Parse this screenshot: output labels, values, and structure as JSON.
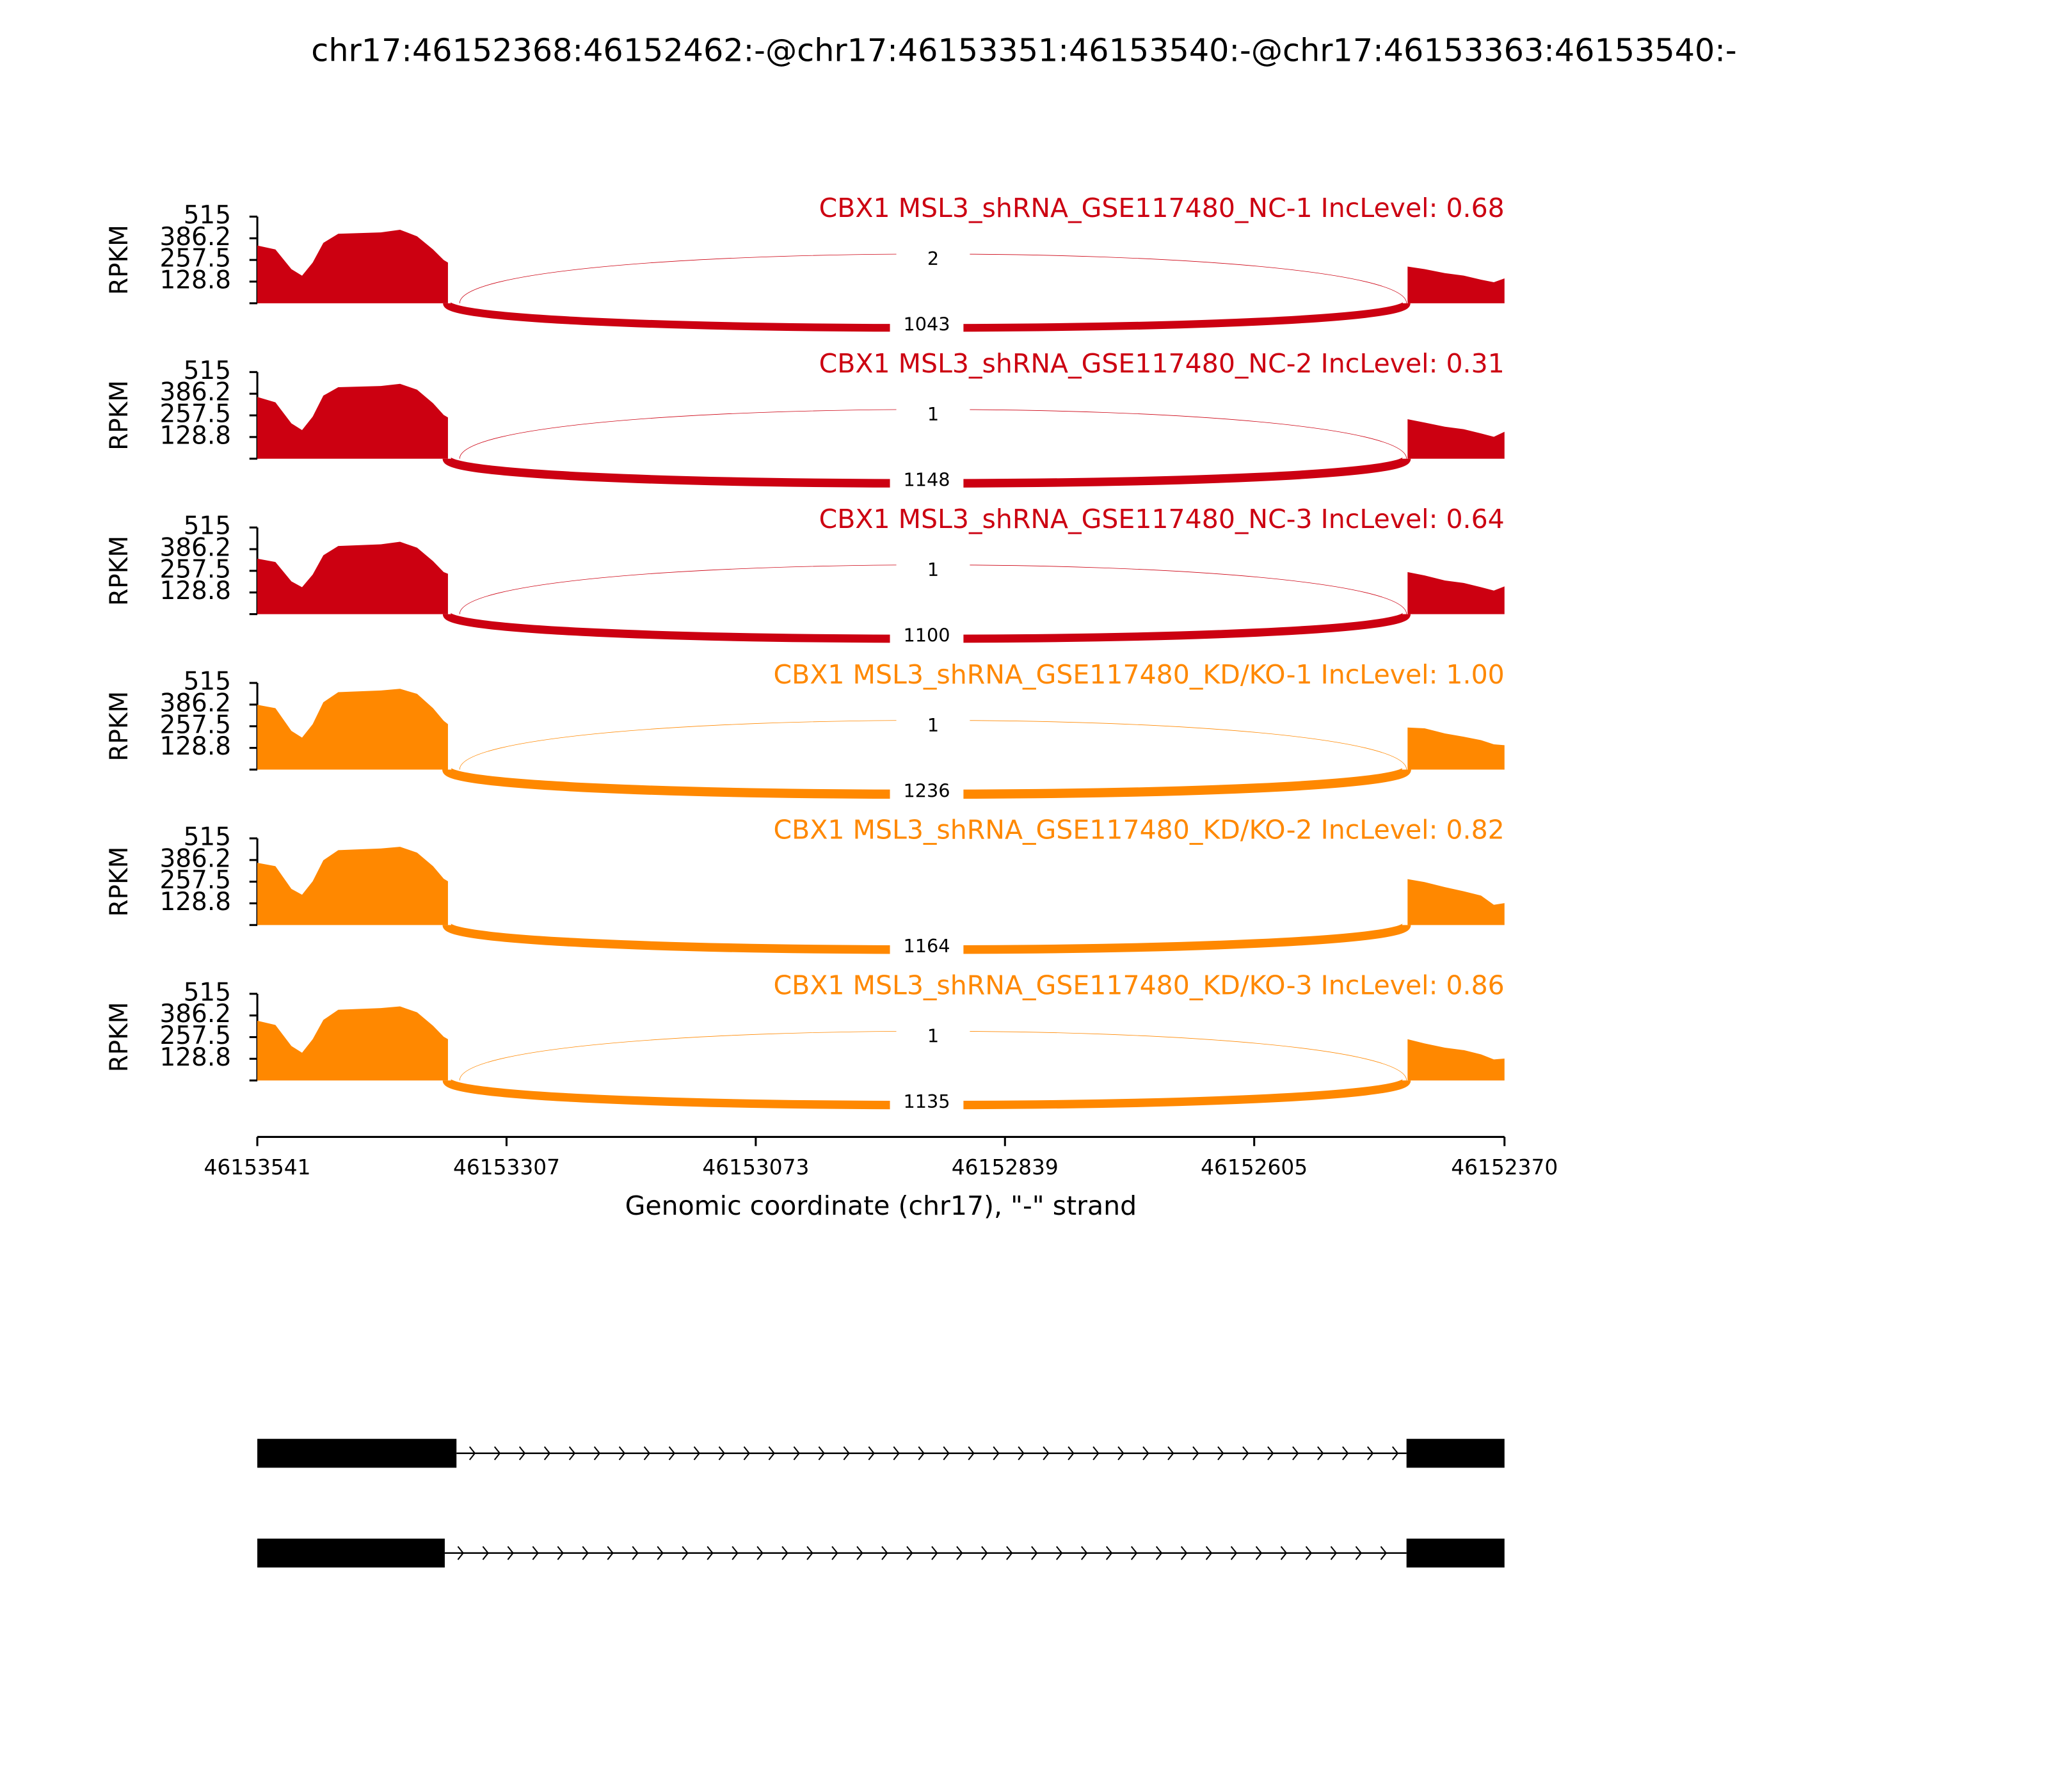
{
  "chart_data": {
    "type": "sashimi",
    "title": "chr17:46152368:46152462:-@chr17:46153351:46153540:-@chr17:46153363:46153540:-",
    "xlabel": "Genomic coordinate (chr17), \"-\" strand",
    "ylabel": "RPKM",
    "xlim": [
      46153541,
      46152370
    ],
    "xticks": [
      46153541,
      46153307,
      46153073,
      46152839,
      46152605,
      46152370
    ],
    "ylim": [
      0,
      515
    ],
    "yticks": [
      128.8,
      257.5,
      386.2,
      515
    ],
    "x": [
      46153541,
      46153524,
      46153509,
      46153499,
      46153489,
      46153479,
      46153465,
      46153425,
      46153407,
      46153391,
      46153376,
      46153366,
      46153362,
      46152900,
      46152461,
      46152445,
      46152426,
      46152408,
      46152392,
      46152380,
      46152370
    ],
    "tracks": [
      {
        "name": "CBX1 MSL3_shRNA_GSE117480_NC-1 IncLevel: 0.68",
        "color": "#cc0011",
        "values": [
          343,
          320,
          203,
          164,
          242,
          359,
          413,
          421,
          437,
          398,
          320,
          257,
          242,
          null,
          218,
          203,
          179,
          164,
          140,
          125,
          148
        ],
        "junctions": [
          {
            "x": [
              46153351,
              46152462
            ],
            "value": 2,
            "arc": "up"
          },
          {
            "x": [
              46153363,
              46152462
            ],
            "value": 1043,
            "arc": "down"
          }
        ]
      },
      {
        "name": "CBX1 MSL3_shRNA_GSE117480_NC-2 IncLevel: 0.31",
        "color": "#cc0011",
        "values": [
          367,
          335,
          210,
          170,
          250,
          375,
          425,
          432,
          445,
          410,
          330,
          260,
          245,
          null,
          235,
          215,
          190,
          175,
          150,
          130,
          160
        ],
        "junctions": [
          {
            "x": [
              46153351,
              46152462
            ],
            "value": 1,
            "arc": "up"
          },
          {
            "x": [
              46153363,
              46152462
            ],
            "value": 1148,
            "arc": "down"
          }
        ]
      },
      {
        "name": "CBX1 MSL3_shRNA_GSE117480_NC-3 IncLevel: 0.64",
        "color": "#cc0011",
        "values": [
          330,
          310,
          195,
          160,
          235,
          350,
          405,
          415,
          430,
          395,
          315,
          250,
          240,
          null,
          250,
          230,
          200,
          185,
          160,
          140,
          165
        ],
        "junctions": [
          {
            "x": [
              46153351,
              46152462
            ],
            "value": 1,
            "arc": "up"
          },
          {
            "x": [
              46153363,
              46152462
            ],
            "value": 1100,
            "arc": "down"
          }
        ]
      },
      {
        "name": "CBX1 MSL3_shRNA_GSE117480_KD/KO-1 IncLevel: 1.00",
        "color": "#ff8800",
        "values": [
          385,
          365,
          230,
          190,
          270,
          400,
          460,
          470,
          480,
          450,
          365,
          290,
          270,
          null,
          250,
          245,
          215,
          195,
          175,
          150,
          145
        ],
        "junctions": [
          {
            "x": [
              46153351,
              46152462
            ],
            "value": 1,
            "arc": "up"
          },
          {
            "x": [
              46153363,
              46152462
            ],
            "value": 1236,
            "arc": "down"
          }
        ]
      },
      {
        "name": "CBX1 MSL3_shRNA_GSE117480_KD/KO-2 IncLevel: 0.82",
        "color": "#ff8800",
        "values": [
          370,
          350,
          215,
          180,
          260,
          385,
          445,
          455,
          465,
          430,
          350,
          275,
          260,
          null,
          273,
          255,
          225,
          200,
          175,
          120,
          130
        ],
        "junctions": [
          {
            "x": [
              46153363,
              46152462
            ],
            "value": 1164,
            "arc": "down"
          }
        ]
      },
      {
        "name": "CBX1 MSL3_shRNA_GSE117480_KD/KO-3 IncLevel: 0.86",
        "color": "#ff8800",
        "values": [
          355,
          330,
          205,
          165,
          245,
          360,
          420,
          430,
          440,
          405,
          325,
          260,
          245,
          null,
          245,
          220,
          195,
          180,
          155,
          125,
          130
        ],
        "junctions": [
          {
            "x": [
              46153351,
              46152462
            ],
            "value": 1,
            "arc": "up"
          },
          {
            "x": [
              46153363,
              46152462
            ],
            "value": 1135,
            "arc": "down"
          }
        ]
      }
    ],
    "transcripts": [
      {
        "exons": [
          [
            46153541,
            46153354
          ],
          [
            46152462,
            46152370
          ]
        ]
      },
      {
        "exons": [
          [
            46153541,
            46153365
          ],
          [
            46152462,
            46152370
          ]
        ]
      }
    ]
  }
}
